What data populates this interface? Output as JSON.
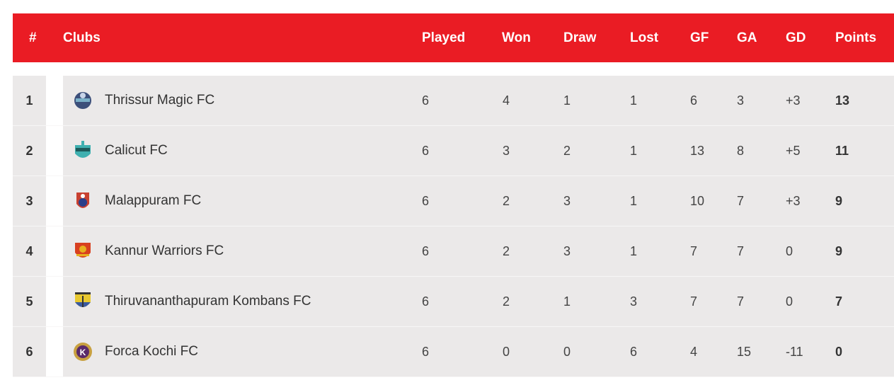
{
  "header": {
    "rank": "#",
    "club": "Clubs",
    "played": "Played",
    "won": "Won",
    "draw": "Draw",
    "lost": "Lost",
    "gf": "GF",
    "ga": "GA",
    "gd": "GD",
    "points": "Points"
  },
  "colors": {
    "header_bg": "#ea1c24",
    "row_bg": "#ebe9e9"
  },
  "rows": [
    {
      "rank": "1",
      "club": "Thrissur Magic FC",
      "logo": "thrissur-magic-crest",
      "played": "6",
      "won": "4",
      "draw": "1",
      "lost": "1",
      "gf": "6",
      "ga": "3",
      "gd": "+3",
      "points": "13"
    },
    {
      "rank": "2",
      "club": "Calicut FC",
      "logo": "calicut-crest",
      "played": "6",
      "won": "3",
      "draw": "2",
      "lost": "1",
      "gf": "13",
      "ga": "8",
      "gd": "+5",
      "points": "11"
    },
    {
      "rank": "3",
      "club": "Malappuram FC",
      "logo": "malappuram-crest",
      "played": "6",
      "won": "2",
      "draw": "3",
      "lost": "1",
      "gf": "10",
      "ga": "7",
      "gd": "+3",
      "points": "9"
    },
    {
      "rank": "4",
      "club": "Kannur Warriors FC",
      "logo": "kannur-warriors-crest",
      "played": "6",
      "won": "2",
      "draw": "3",
      "lost": "1",
      "gf": "7",
      "ga": "7",
      "gd": "0",
      "points": "9"
    },
    {
      "rank": "5",
      "club": "Thiruvananthapuram Kombans FC",
      "logo": "kombans-crest",
      "played": "6",
      "won": "2",
      "draw": "1",
      "lost": "3",
      "gf": "7",
      "ga": "7",
      "gd": "0",
      "points": "7"
    },
    {
      "rank": "6",
      "club": "Forca Kochi FC",
      "logo": "forca-kochi-crest",
      "played": "6",
      "won": "0",
      "draw": "0",
      "lost": "6",
      "gf": "4",
      "ga": "15",
      "gd": "-11",
      "points": "0"
    }
  ]
}
